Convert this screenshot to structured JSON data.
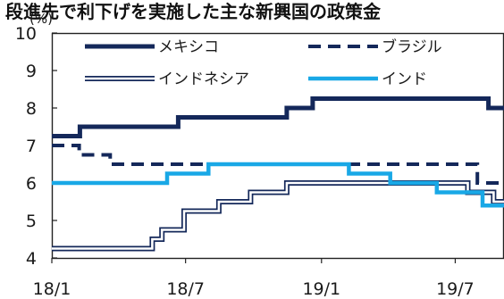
{
  "chart_data": {
    "type": "line",
    "title": "段進先で利下げを実施した主な新興国の政策金",
    "ylabel": "(%)",
    "ylim": [
      4,
      10
    ],
    "yticks": [
      4,
      5,
      6,
      7,
      8,
      9,
      10
    ],
    "xticks": [
      {
        "date": "2018-01-01",
        "label": "18/1"
      },
      {
        "date": "2018-07-01",
        "label": "18/7"
      },
      {
        "date": "2019-01-01",
        "label": "19/1"
      },
      {
        "date": "2019-07-01",
        "label": "19/7"
      }
    ],
    "xlim": [
      "2018-01-01",
      "2019-09-05"
    ],
    "grid": false,
    "legend_position": "top",
    "series": [
      {
        "name": "メキシコ",
        "style": "solid-thick",
        "color": "#14285a",
        "steps": [
          [
            "2018-01-01",
            7.25
          ],
          [
            "2018-02-08",
            7.5
          ],
          [
            "2018-06-21",
            7.75
          ],
          [
            "2018-11-15",
            8.0
          ],
          [
            "2018-12-20",
            8.25
          ],
          [
            "2019-08-15",
            8.0
          ]
        ]
      },
      {
        "name": "ブラジル",
        "style": "dashed",
        "color": "#14285a",
        "steps": [
          [
            "2018-01-01",
            7.0
          ],
          [
            "2018-02-07",
            6.75
          ],
          [
            "2018-03-21",
            6.5
          ],
          [
            "2019-07-31",
            6.0
          ]
        ]
      },
      {
        "name": "インドネシア",
        "style": "double",
        "color": "#14285a",
        "steps": [
          [
            "2018-01-01",
            4.25
          ],
          [
            "2018-05-17",
            4.5
          ],
          [
            "2018-05-30",
            4.75
          ],
          [
            "2018-06-29",
            5.25
          ],
          [
            "2018-08-15",
            5.5
          ],
          [
            "2018-09-27",
            5.75
          ],
          [
            "2018-11-15",
            6.0
          ],
          [
            "2019-07-18",
            5.75
          ],
          [
            "2019-08-22",
            5.5
          ]
        ]
      },
      {
        "name": "インド",
        "style": "solid",
        "color": "#19a8e6",
        "steps": [
          [
            "2018-01-01",
            6.0
          ],
          [
            "2018-06-06",
            6.25
          ],
          [
            "2018-08-01",
            6.5
          ],
          [
            "2019-02-07",
            6.25
          ],
          [
            "2019-04-04",
            6.0
          ],
          [
            "2019-06-06",
            5.75
          ],
          [
            "2019-08-07",
            5.4
          ]
        ]
      }
    ]
  }
}
